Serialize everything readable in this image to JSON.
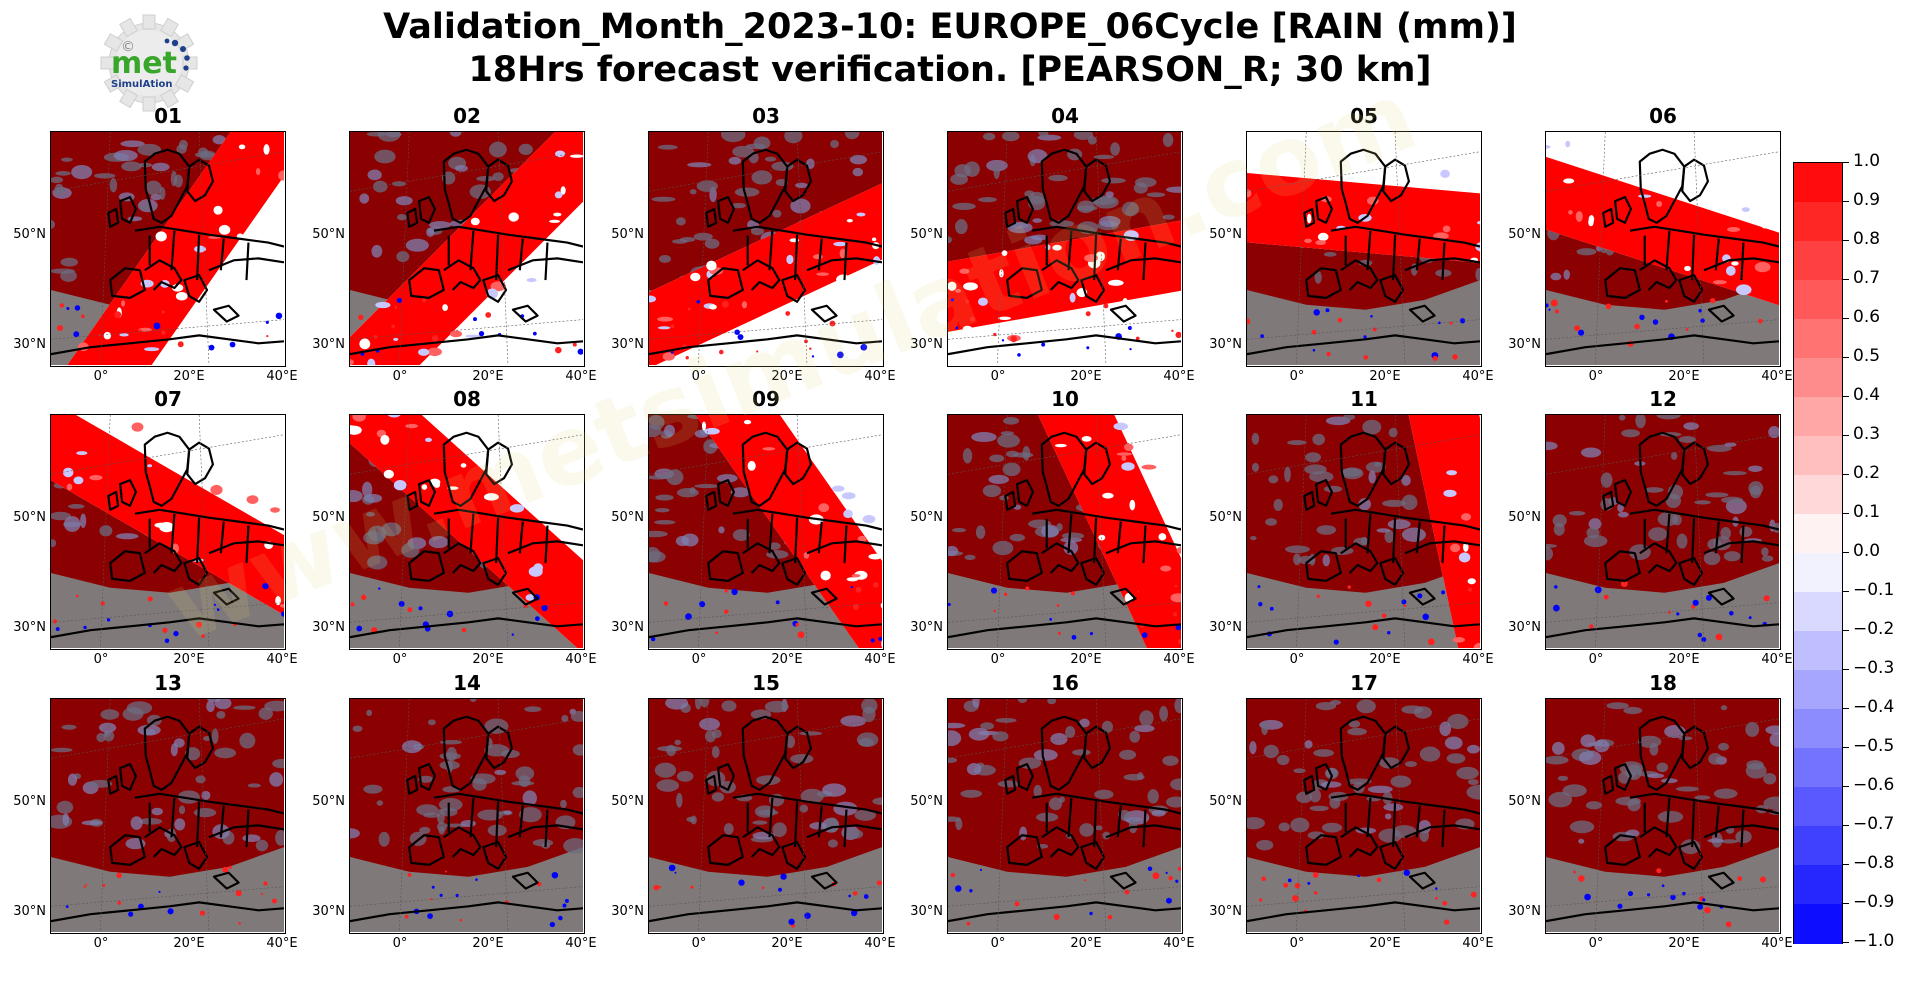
{
  "figure": {
    "title_line1": "Validation_Month_2023-10: EUROPE_06Cycle [RAIN (mm)]",
    "title_line2": "18Hrs forecast verification.  [PEARSON_R; 30 km]"
  },
  "logo": {
    "text": "met",
    "subtext": "SimulAtion",
    "copyright": "©"
  },
  "watermark": "www.metsimulation.com",
  "map_axes": {
    "y_ticks": [
      "50°N",
      "30°N"
    ],
    "x_ticks": [
      "0°",
      "20°E",
      "40°E"
    ]
  },
  "panels": [
    {
      "label": "01",
      "front_angle": -55,
      "front_pos": 0.42
    },
    {
      "label": "02",
      "front_angle": -45,
      "front_pos": 0.38
    },
    {
      "label": "03",
      "front_angle": -25,
      "front_pos": 0.4
    },
    {
      "label": "04",
      "front_angle": -10,
      "front_pos": 0.32
    },
    {
      "label": "05",
      "front_angle": 5,
      "front_pos": 0.3
    },
    {
      "label": "06",
      "front_angle": 18,
      "front_pos": 0.25
    },
    {
      "label": "07",
      "front_angle": 30,
      "front_pos": 0.38
    },
    {
      "label": "08",
      "front_angle": 42,
      "front_pos": 0.42
    },
    {
      "label": "09",
      "front_angle": 55,
      "front_pos": 0.55
    },
    {
      "label": "10",
      "front_angle": 65,
      "front_pos": 0.62
    },
    {
      "label": "11",
      "front_angle": 78,
      "front_pos": 0.8
    },
    {
      "label": "12",
      "front_angle": 0,
      "front_pos": 1.0
    },
    {
      "label": "13",
      "front_angle": 0,
      "front_pos": 1.0
    },
    {
      "label": "14",
      "front_angle": 0,
      "front_pos": 1.0
    },
    {
      "label": "15",
      "front_angle": 0,
      "front_pos": 1.0
    },
    {
      "label": "16",
      "front_angle": 0,
      "front_pos": 1.0
    },
    {
      "label": "17",
      "front_angle": 0,
      "front_pos": 1.0
    },
    {
      "label": "18",
      "front_angle": 0,
      "front_pos": 1.0
    }
  ],
  "colorbar": {
    "ticks": [
      "1.0",
      "0.9",
      "0.8",
      "0.7",
      "0.6",
      "0.5",
      "0.4",
      "0.3",
      "0.2",
      "0.1",
      "0.0",
      "−0.1",
      "−0.2",
      "−0.3",
      "−0.4",
      "−0.5",
      "−0.6",
      "−0.7",
      "−0.8",
      "−0.9",
      "−1.0"
    ],
    "min": -1.0,
    "max": 1.0,
    "levels": 20,
    "colors": {
      "positive": "#ff0000",
      "negative": "#0000ff",
      "mid": "#ffffff",
      "masked": "#808080",
      "high_correlation": "#8b0000"
    }
  }
}
